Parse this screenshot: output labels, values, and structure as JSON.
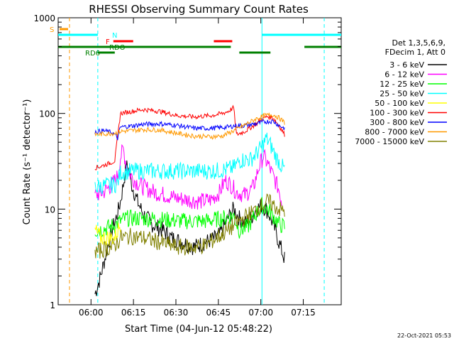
{
  "chart_data": {
    "type": "line",
    "title": "RHESSI Observing Summary Count Rates",
    "xlabel": "Start Time (04-Jun-12 05:48:22)",
    "ylabel": "Count Rate (s⁻¹ detector⁻¹)",
    "yscale": "log",
    "ylim": [
      1,
      1000
    ],
    "xlim": [
      0,
      100
    ],
    "x_unit": "minutes since 05:48:22",
    "x_ticks": [
      {
        "value": 11.6,
        "label": "06:00"
      },
      {
        "value": 26.6,
        "label": "06:15"
      },
      {
        "value": 41.6,
        "label": "06:30"
      },
      {
        "value": 56.6,
        "label": "06:45"
      },
      {
        "value": 71.6,
        "label": "07:00"
      },
      {
        "value": 86.6,
        "label": "07:15"
      }
    ],
    "y_ticks": [
      {
        "value": 1,
        "label": "1"
      },
      {
        "value": 10,
        "label": "10"
      },
      {
        "value": 100,
        "label": "100"
      },
      {
        "value": 1000,
        "label": "1000"
      }
    ],
    "grid": false,
    "legend_position": "right",
    "legend_header": [
      "Det 1,3,5,6,9,",
      "FDecim 1, Att 0"
    ],
    "timestamp": "22-Oct-2021 05:53",
    "series": [
      {
        "name": "3 - 6 keV",
        "color": "#000000",
        "points": [
          [
            13,
            1.3
          ],
          [
            15,
            2.0
          ],
          [
            17,
            3.5
          ],
          [
            19,
            6.0
          ],
          [
            21,
            9.0
          ],
          [
            22,
            12
          ],
          [
            23,
            18
          ],
          [
            24,
            28
          ],
          [
            25,
            26
          ],
          [
            26,
            18
          ],
          [
            28,
            12
          ],
          [
            30,
            9.0
          ],
          [
            33,
            7.0
          ],
          [
            37,
            6.0
          ],
          [
            40,
            5.0
          ],
          [
            44,
            4.5
          ],
          [
            48,
            4.0
          ],
          [
            52,
            4.5
          ],
          [
            56,
            5.0
          ],
          [
            58,
            6.0
          ],
          [
            60,
            8.0
          ],
          [
            62,
            10
          ],
          [
            64,
            8.0
          ],
          [
            66,
            7.0
          ],
          [
            68,
            8.0
          ],
          [
            70,
            10
          ],
          [
            72,
            11
          ],
          [
            74,
            9.5
          ],
          [
            76,
            7.0
          ],
          [
            78,
            4.5
          ],
          [
            80,
            3.0
          ]
        ]
      },
      {
        "name": "6 - 12 keV",
        "color": "#ff00ff",
        "points": [
          [
            13,
            14
          ],
          [
            16,
            15
          ],
          [
            19,
            18
          ],
          [
            21,
            22
          ],
          [
            22,
            35
          ],
          [
            23,
            42
          ],
          [
            24,
            30
          ],
          [
            25,
            24
          ],
          [
            27,
            20
          ],
          [
            30,
            17
          ],
          [
            34,
            15
          ],
          [
            38,
            14
          ],
          [
            42,
            13
          ],
          [
            46,
            12.5
          ],
          [
            50,
            12
          ],
          [
            54,
            12.5
          ],
          [
            57,
            15
          ],
          [
            59,
            20
          ],
          [
            61,
            18
          ],
          [
            63,
            15
          ],
          [
            66,
            14
          ],
          [
            69,
            17
          ],
          [
            71,
            28
          ],
          [
            72.5,
            36
          ],
          [
            74,
            30
          ],
          [
            76,
            22
          ],
          [
            78,
            16
          ],
          [
            79,
            12
          ]
        ]
      },
      {
        "name": "12 - 25 keV",
        "color": "#00ff00",
        "points": [
          [
            13,
            6.0
          ],
          [
            16,
            6.2
          ],
          [
            20,
            6.8
          ],
          [
            22,
            7.5
          ],
          [
            24,
            8.0
          ],
          [
            30,
            8.0
          ],
          [
            36,
            7.8
          ],
          [
            44,
            7.5
          ],
          [
            52,
            7.5
          ],
          [
            58,
            8.0
          ],
          [
            62,
            8.5
          ],
          [
            64,
            6.0
          ],
          [
            67,
            6.5
          ],
          [
            70,
            9.0
          ],
          [
            72,
            11
          ],
          [
            74,
            10
          ],
          [
            76,
            8.5
          ],
          [
            78,
            7.0
          ],
          [
            80,
            6.5
          ]
        ]
      },
      {
        "name": "25 - 50 keV",
        "color": "#00ffff",
        "points": [
          [
            13,
            17
          ],
          [
            16,
            17.5
          ],
          [
            20,
            18
          ],
          [
            21,
            19
          ],
          [
            22,
            24
          ],
          [
            26,
            25
          ],
          [
            32,
            25
          ],
          [
            40,
            25
          ],
          [
            48,
            25
          ],
          [
            54,
            25
          ],
          [
            58,
            25.5
          ],
          [
            62,
            27
          ],
          [
            64,
            32
          ],
          [
            66,
            33
          ],
          [
            68,
            33
          ],
          [
            70,
            38
          ],
          [
            72,
            45
          ],
          [
            73.5,
            55
          ],
          [
            75,
            47
          ],
          [
            77,
            35
          ],
          [
            79,
            28
          ],
          [
            80,
            26
          ]
        ]
      },
      {
        "name": "50 - 100 keV",
        "color": "#ffff00",
        "points": [
          [
            13,
            6.0
          ],
          [
            15,
            5.0
          ],
          [
            16,
            5.0
          ],
          [
            20,
            5.0
          ],
          [
            22,
            7.0
          ]
        ]
      },
      {
        "name": "100 - 300 keV",
        "color": "#ff0000",
        "points": [
          [
            13,
            27
          ],
          [
            15,
            28
          ],
          [
            18,
            30
          ],
          [
            20,
            32
          ],
          [
            22,
            100
          ],
          [
            26,
            105
          ],
          [
            30,
            110
          ],
          [
            36,
            105
          ],
          [
            42,
            95
          ],
          [
            48,
            92
          ],
          [
            54,
            95
          ],
          [
            58,
            100
          ],
          [
            60,
            105
          ],
          [
            62,
            115
          ],
          [
            63,
            60
          ],
          [
            66,
            65
          ],
          [
            70,
            78
          ],
          [
            72,
            88
          ],
          [
            74,
            93
          ],
          [
            76,
            90
          ],
          [
            78,
            75
          ],
          [
            80,
            60
          ]
        ]
      },
      {
        "name": "300 - 800 keV",
        "color": "#0000ff",
        "points": [
          [
            13,
            64
          ],
          [
            16,
            66
          ],
          [
            19,
            63
          ],
          [
            20,
            60
          ],
          [
            21,
            55
          ],
          [
            22,
            72
          ],
          [
            26,
            74
          ],
          [
            30,
            77
          ],
          [
            36,
            78
          ],
          [
            42,
            75
          ],
          [
            48,
            70
          ],
          [
            54,
            70
          ],
          [
            60,
            72
          ],
          [
            62,
            74
          ],
          [
            66,
            75
          ],
          [
            70,
            78
          ],
          [
            73,
            82
          ],
          [
            76,
            83
          ],
          [
            78,
            75
          ],
          [
            80,
            70
          ]
        ]
      },
      {
        "name": "800 - 7000 keV",
        "color": "#ff9900",
        "points": [
          [
            13,
            60
          ],
          [
            16,
            61
          ],
          [
            19,
            62
          ],
          [
            21,
            63
          ],
          [
            22,
            65
          ],
          [
            26,
            66
          ],
          [
            30,
            68
          ],
          [
            36,
            67
          ],
          [
            42,
            62
          ],
          [
            48,
            58
          ],
          [
            54,
            57
          ],
          [
            58,
            58
          ],
          [
            60,
            62
          ],
          [
            62,
            66
          ],
          [
            66,
            76
          ],
          [
            70,
            88
          ],
          [
            73,
            95
          ],
          [
            76,
            97
          ],
          [
            78,
            90
          ],
          [
            80,
            80
          ]
        ]
      },
      {
        "name": "7000 - 15000 keV",
        "color": "#808000",
        "points": [
          [
            13,
            3.5
          ],
          [
            16,
            3.8
          ],
          [
            19,
            4.0
          ],
          [
            21,
            4.5
          ],
          [
            22,
            5.0
          ],
          [
            26,
            5.2
          ],
          [
            30,
            5.0
          ],
          [
            36,
            4.5
          ],
          [
            42,
            4.0
          ],
          [
            48,
            4.0
          ],
          [
            52,
            4.2
          ],
          [
            56,
            5.0
          ],
          [
            60,
            6.0
          ],
          [
            64,
            7.5
          ],
          [
            68,
            9.0
          ],
          [
            72,
            11
          ],
          [
            74,
            12
          ],
          [
            76,
            11
          ],
          [
            78,
            10
          ],
          [
            80,
            9.5
          ]
        ]
      }
    ],
    "flags": [
      {
        "label": "S",
        "color": "#ff9900",
        "segments": [
          [
            0.5,
            3.5
          ]
        ]
      },
      {
        "label": "N",
        "color": "#00ffff",
        "segments": [
          [
            0,
            14
          ],
          [
            72,
            100
          ]
        ]
      },
      {
        "label": "F",
        "color": "#ff0000",
        "segments": [
          [
            19.5,
            26.5
          ],
          [
            55,
            61.5
          ]
        ]
      },
      {
        "label": "RDO",
        "color": "#008000",
        "segments": [
          [
            0,
            21
          ],
          [
            21,
            61
          ],
          [
            87,
            100
          ]
        ]
      },
      {
        "label": "RD6",
        "color": "#008000",
        "segments": [
          [
            14,
            20
          ],
          [
            64,
            75
          ]
        ]
      }
    ],
    "vertical_lines": [
      {
        "x": 4.0,
        "color": "#ff9900"
      },
      {
        "x": 14.0,
        "color": "#00ffff"
      },
      {
        "x": 72.0,
        "color": "#00ffff",
        "solid": true
      },
      {
        "x": 94.0,
        "color": "#00ffff"
      }
    ]
  }
}
